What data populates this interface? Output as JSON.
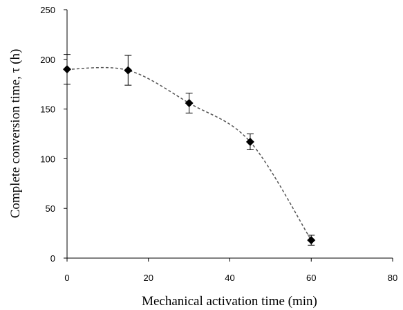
{
  "chart_data": {
    "type": "scatter",
    "title": "",
    "xlabel": "Mechanical activation time (min)",
    "ylabel": "Complete conversion time, τ  (h)",
    "xlim": [
      0,
      80
    ],
    "ylim": [
      0,
      250
    ],
    "x_ticks": [
      "0",
      "20",
      "40",
      "60",
      "80"
    ],
    "y_ticks": [
      "0",
      "50",
      "100",
      "150",
      "200",
      "250"
    ],
    "grid": false,
    "legend": "none",
    "trend_line": "dashed",
    "marker": "diamond",
    "series": [
      {
        "x": [
          0,
          15,
          30,
          45,
          60
        ],
        "y": [
          190,
          189,
          156,
          117,
          18
        ],
        "error": [
          15,
          15,
          10,
          8,
          5
        ]
      }
    ]
  },
  "colors": {
    "marker": "#000000",
    "line": "#555555",
    "axis": "#000000"
  }
}
